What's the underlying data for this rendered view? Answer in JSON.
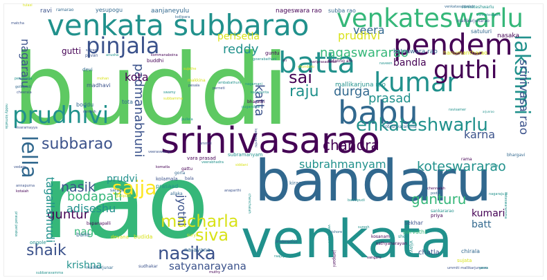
{
  "palette": {
    "purple": "#440154",
    "indigo": "#3b528b",
    "blue": "#31688e",
    "teal": "#21918c",
    "green": "#35b779",
    "lime": "#5ec962",
    "yellow": "#fde725",
    "gold": "#d8e219",
    "slate": "#2c728e"
  },
  "words": [
    "buddi",
    "rao",
    "bandaru",
    "venkata",
    "srinivasarao",
    "venkata subbarao",
    "venkateswarlu",
    "pendem",
    "pinjala",
    "babu",
    "kumar",
    "batta",
    "lakshmi",
    "prudhivi",
    "enkateshwarlu",
    "guthi",
    "lella",
    "subbarao",
    "sajja",
    "nasika",
    "macharla",
    "koteswararao",
    "gunturu",
    "siva",
    "shaik",
    "srinivasa rao",
    "nagaswararao",
    "sai",
    "reddy",
    "padmanabhuni",
    "prasad",
    "raju",
    "katta",
    "durga",
    "chandra",
    "karna",
    "veera",
    "perisetla",
    "prudhvi",
    "guntur",
    "nasik",
    "bodapati",
    "adiseshu",
    "krishna",
    "satyanarayana",
    "jyothi",
    "naga",
    "subrahmanyam",
    "tagallamudi",
    "kumari",
    "batt",
    "nagaraju",
    "kota",
    "gutti",
    "bandla",
    "koteswara rao",
    "hanumantharao",
    "mallikarjuna rao",
    "prudvi",
    "narayana",
    "ravi",
    "yesupogu",
    "aanjaneyulu",
    "nageswara rao",
    "subba rao",
    "venkateshwarlu",
    "satuluri",
    "nasaka",
    "devi",
    "madhavi",
    "boddu",
    "tulasi",
    "kolamala",
    "prasaad",
    "allaka",
    "kiran",
    "priya",
    "sekhar",
    "parvathi",
    "chatla",
    "chirala",
    "vijaya",
    "sujata",
    "budida",
    "devana",
    "surya",
    "ongole",
    "balla",
    "bapanapalli",
    "kosanam",
    "sudhakar",
    "mallikarjunar",
    "raajapantula",
    "bharathi",
    "koteshvaramma",
    "kallagunta",
    "pugandhar",
    "nagamani",
    "tota",
    "mohan",
    "ramesh",
    "satran",
    "pavan",
    "anusha",
    "kommanaboina",
    "buddhi",
    "sujathe",
    "kollipara",
    "ramarao",
    "matcha",
    "guntu",
    "gowrabathuni",
    "hariprasadarao",
    "chunduru",
    "koteling am",
    "gollapudi",
    "perumalla",
    "cheerala",
    "makkina",
    "pesala",
    "swamy",
    "subbamma",
    "perneti",
    "pullela",
    "vara prasad",
    "veerabhadra",
    "subramanyam",
    "chennaiah",
    "podili",
    "kishore",
    "suresh",
    "sankararao",
    "sheo",
    "bhargavi",
    "vara",
    "rama",
    "ravisamer",
    "arjunrao",
    "sarada",
    "komatla",
    "gorla",
    "gattu",
    "bala",
    "ummiti",
    "veeraswamy",
    "kotaiah",
    "prasad peraka",
    "sivaramayya",
    "annapurna",
    "vedam",
    "jampani",
    "vangaru",
    "bhujangarao",
    "china",
    "sathyanarayan",
    "ummiti mallikarjunarao",
    "yarra",
    "venkatesh",
    "kanuparthi",
    "ambabathuni",
    "anaparthi",
    "chenchaiah",
    "subbaravamma",
    "muthy",
    "nagaraju p",
    "reddy komatla",
    "gudipudi",
    "baddipudi",
    "siddani",
    "koteswaramma",
    "venkatasubbaiah",
    "venkateswara",
    "mallikarjunarao",
    "sri",
    "naveen"
  ]
}
